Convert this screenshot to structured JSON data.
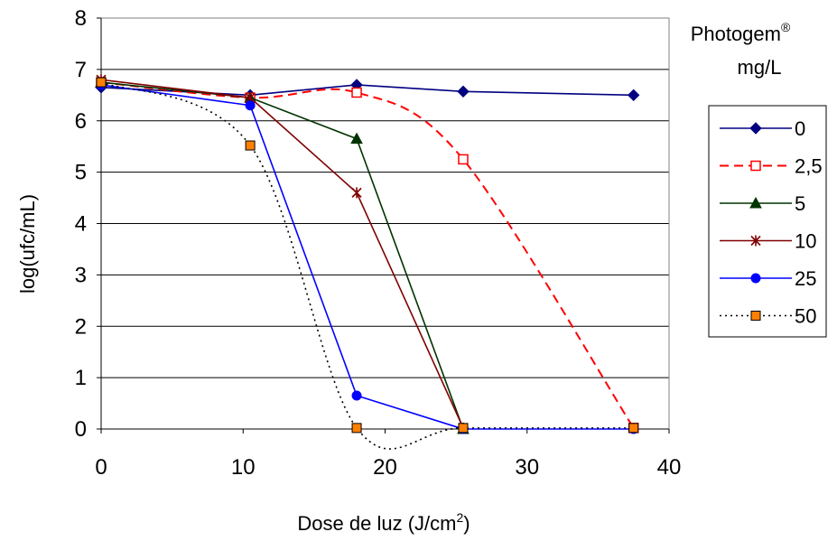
{
  "chart_data": {
    "type": "line",
    "title": "",
    "xlabel": "Dose de luz (J/cm²)",
    "xlabel_main": "Dose de luz (J/cm",
    "xlabel_sup": "2",
    "xlabel_end": ")",
    "ylabel": "log(ufc/mL)",
    "xlim": [
      0,
      40
    ],
    "ylim": [
      0,
      8
    ],
    "x_ticks": [
      "0",
      "10",
      "20",
      "30",
      "40"
    ],
    "y_ticks": [
      "0",
      "1",
      "2",
      "3",
      "4",
      "5",
      "6",
      "7",
      "8"
    ],
    "grid": "horizontal",
    "legend": {
      "title_line1": "Photogem",
      "title_sup": "®",
      "title_line2": "mg/L",
      "placement": "right"
    },
    "series": [
      {
        "name": "0",
        "color": "#000080",
        "dash": "solid",
        "marker": "diamond",
        "points": [
          [
            0,
            6.65
          ],
          [
            10.5,
            6.5
          ],
          [
            18,
            6.7
          ],
          [
            25.5,
            6.57
          ],
          [
            37.5,
            6.5
          ]
        ]
      },
      {
        "name": "2,5",
        "color": "#ff0000",
        "dash": "dashed",
        "marker": "open-square",
        "points": [
          [
            0,
            6.75
          ],
          [
            10.5,
            6.45
          ],
          [
            18,
            6.55
          ],
          [
            25.5,
            5.25
          ],
          [
            37.5,
            0.02
          ]
        ]
      },
      {
        "name": "5",
        "color": "#003300",
        "dash": "solid",
        "marker": "triangle",
        "points": [
          [
            0,
            6.75
          ],
          [
            10.5,
            6.45
          ],
          [
            18,
            5.65
          ],
          [
            25.5,
            0.0
          ]
        ]
      },
      {
        "name": "10",
        "color": "#800000",
        "dash": "solid",
        "marker": "asterisk",
        "points": [
          [
            0,
            6.8
          ],
          [
            10.5,
            6.45
          ],
          [
            18,
            4.6
          ],
          [
            25.5,
            0.02
          ]
        ]
      },
      {
        "name": "25",
        "color": "#0000ff",
        "dash": "solid",
        "marker": "circle",
        "points": [
          [
            0,
            6.7
          ],
          [
            10.5,
            6.3
          ],
          [
            18,
            0.65
          ],
          [
            25.5,
            0.0
          ],
          [
            37.5,
            0.0
          ]
        ]
      },
      {
        "name": "50",
        "color": "#000000",
        "dash": "dotted",
        "marker": "orange-square",
        "points": [
          [
            0,
            6.75
          ],
          [
            10.5,
            5.52
          ],
          [
            18,
            0.02
          ],
          [
            25.5,
            0.02
          ],
          [
            37.5,
            0.02
          ]
        ]
      }
    ]
  }
}
